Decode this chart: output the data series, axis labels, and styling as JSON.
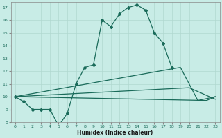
{
  "xlabel": "Humidex (Indice chaleur)",
  "bg_color": "#c8ece6",
  "grid_color": "#b0d8d0",
  "line_color": "#1a6b5a",
  "xlim": [
    -0.5,
    23.5
  ],
  "ylim": [
    8,
    17.4
  ],
  "yticks": [
    8,
    9,
    10,
    11,
    12,
    13,
    14,
    15,
    16,
    17
  ],
  "xticks": [
    0,
    1,
    2,
    3,
    4,
    5,
    6,
    7,
    8,
    9,
    10,
    11,
    12,
    13,
    14,
    15,
    16,
    17,
    18,
    19,
    20,
    21,
    22,
    23
  ],
  "line1_x": [
    0,
    1,
    2,
    3,
    4,
    5,
    6,
    7,
    8,
    9,
    10,
    11,
    12,
    13,
    14,
    15,
    16,
    17,
    18
  ],
  "line1_y": [
    10,
    9.6,
    9,
    9,
    9,
    7.7,
    8.7,
    11,
    12.3,
    12.5,
    16,
    15.5,
    16.5,
    17,
    17.2,
    16.8,
    15,
    14.2,
    12.3
  ],
  "line2_x": [
    0,
    22,
    23
  ],
  "line2_y": [
    10,
    9.7,
    10
  ],
  "line3_x": [
    0,
    19,
    21,
    23
  ],
  "line3_y": [
    10,
    12.3,
    9.7,
    10
  ],
  "line4_x": [
    0,
    20,
    23
  ],
  "line4_y": [
    10,
    10.7,
    9.8
  ]
}
